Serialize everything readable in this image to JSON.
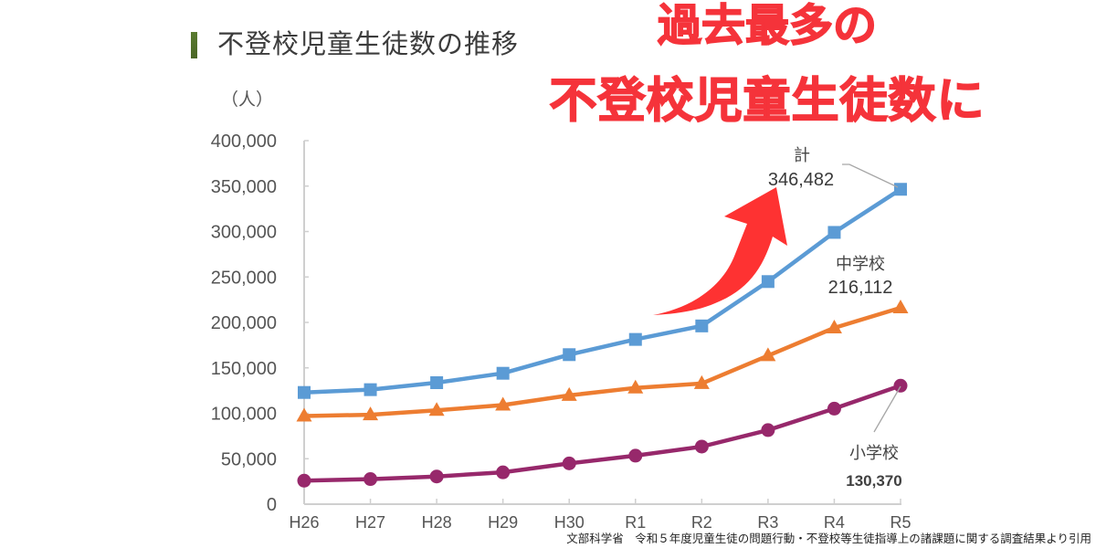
{
  "header": {
    "title": "不登校児童生徒数の推移",
    "unit_label": "（人）"
  },
  "headline": {
    "line1": "過去最多の",
    "line2": "不登校児童生徒数に",
    "color": "#F5333A"
  },
  "source_note": "文部科学省　令和５年度児童生徒の問題行動・不登校等生徒指導上の諸課題に関する調査結果より引用",
  "chart_data": {
    "type": "line",
    "title": "不登校児童生徒数の推移",
    "xlabel": "",
    "ylabel": "（人）",
    "categories": [
      "H26",
      "H27",
      "H28",
      "H29",
      "H30",
      "R1",
      "R2",
      "R3",
      "R4",
      "R5"
    ],
    "ylim": [
      0,
      400000
    ],
    "yticks": [
      0,
      50000,
      100000,
      150000,
      200000,
      250000,
      300000,
      350000,
      400000
    ],
    "ytick_labels": [
      "0",
      "50,000",
      "100,000",
      "150,000",
      "200,000",
      "250,000",
      "300,000",
      "350,000",
      "400,000"
    ],
    "grid": false,
    "legend": "none (direct labels at line ends)",
    "series": [
      {
        "name": "計",
        "marker": "square",
        "color": "#5B9BD5",
        "values": [
          122897,
          125991,
          133683,
          144031,
          164528,
          181272,
          196127,
          244940,
          299048,
          346482
        ]
      },
      {
        "name": "中学校",
        "marker": "triangle",
        "color": "#ED7D31",
        "values": [
          97033,
          98408,
          103235,
          108999,
          119687,
          127922,
          132777,
          163442,
          193936,
          216112
        ]
      },
      {
        "name": "小学校",
        "marker": "circle",
        "color": "#97286B",
        "values": [
          25864,
          27583,
          30448,
          35032,
          44841,
          53350,
          63350,
          81498,
          105112,
          130370
        ]
      }
    ],
    "annotations": [
      {
        "series": "計",
        "label": "計",
        "value_text": "346,482"
      },
      {
        "series": "中学校",
        "label": "中学校",
        "value_text": "216,112"
      },
      {
        "series": "小学校",
        "label": "小学校",
        "value_text": "130,370"
      }
    ],
    "trend_arrow": {
      "direction": "up-right",
      "color": "#FE3232"
    }
  }
}
